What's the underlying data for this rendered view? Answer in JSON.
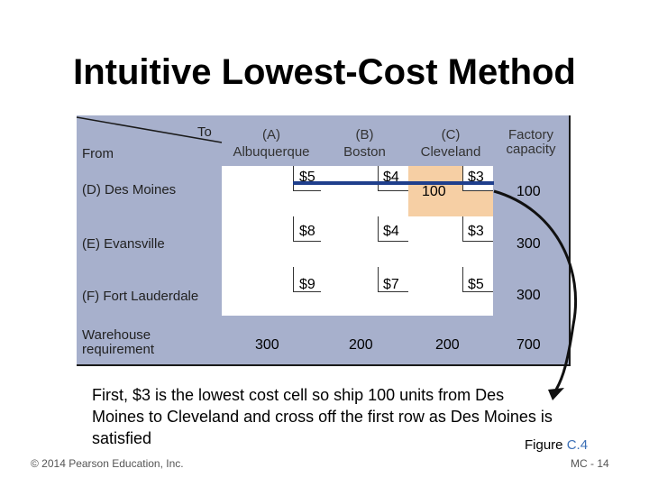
{
  "title": "Intuitive Lowest-Cost Method",
  "table": {
    "to_label": "To",
    "from_label": "From",
    "columns": [
      {
        "line1": "(A)",
        "line2": "Albuquerque"
      },
      {
        "line1": "(B)",
        "line2": "Boston"
      },
      {
        "line1": "(C)",
        "line2": "Cleveland"
      }
    ],
    "capacity_header": {
      "line1": "Factory",
      "line2": "capacity"
    },
    "rows": [
      {
        "label": "(D) Des Moines",
        "costs": [
          "$5",
          "$4",
          "$3"
        ],
        "capacity": "100"
      },
      {
        "label": "(E) Evansville",
        "costs": [
          "$8",
          "$4",
          "$3"
        ],
        "capacity": "300"
      },
      {
        "label": "(F) Fort Lauderdale",
        "costs": [
          "$9",
          "$7",
          "$5"
        ],
        "capacity": "300"
      }
    ],
    "requirement_label": {
      "line1": "Warehouse",
      "line2": "requirement"
    },
    "requirements": [
      "300",
      "200",
      "200"
    ],
    "total": "700",
    "allocation": {
      "row": 0,
      "col": 2,
      "value": "100"
    }
  },
  "caption": "First, $3 is the lowest cost cell so ship 100 units from Des Moines to Cleveland and cross off the first row as Des Moines is satisfied",
  "figure": {
    "prefix": "Figure ",
    "ref": "C.4"
  },
  "copyright": "© 2014 Pearson Education, Inc.",
  "page_number": "MC - 14",
  "colors": {
    "shade": "#a7b0cc",
    "highlight": "#f6cfa4",
    "row_line": "#1f3f8c",
    "border": "#1a1a1a"
  }
}
